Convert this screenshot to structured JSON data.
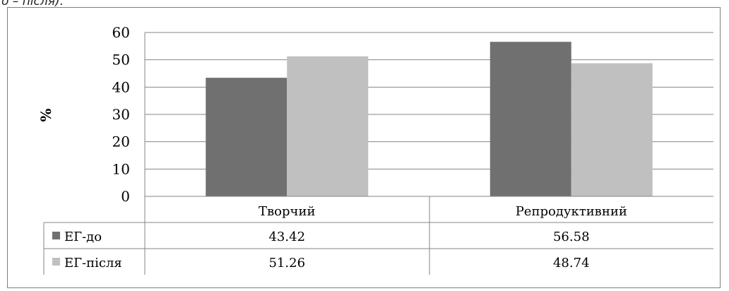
{
  "caption_fragment": "о – після).",
  "chart_data": {
    "type": "bar",
    "title": "",
    "xlabel": "",
    "ylabel": "%",
    "ylim": [
      0,
      60
    ],
    "yticks": [
      0,
      10,
      20,
      30,
      40,
      50,
      60
    ],
    "grid": true,
    "legend": "data-table",
    "categories": [
      "Творчий",
      "Репродуктивний"
    ],
    "series": [
      {
        "name": "ЕГ-до",
        "values": [
          43.42,
          56.58
        ],
        "color": "#707070"
      },
      {
        "name": "ЕГ-після",
        "values": [
          51.26,
          48.74
        ],
        "color": "#c0c0c0"
      }
    ]
  }
}
